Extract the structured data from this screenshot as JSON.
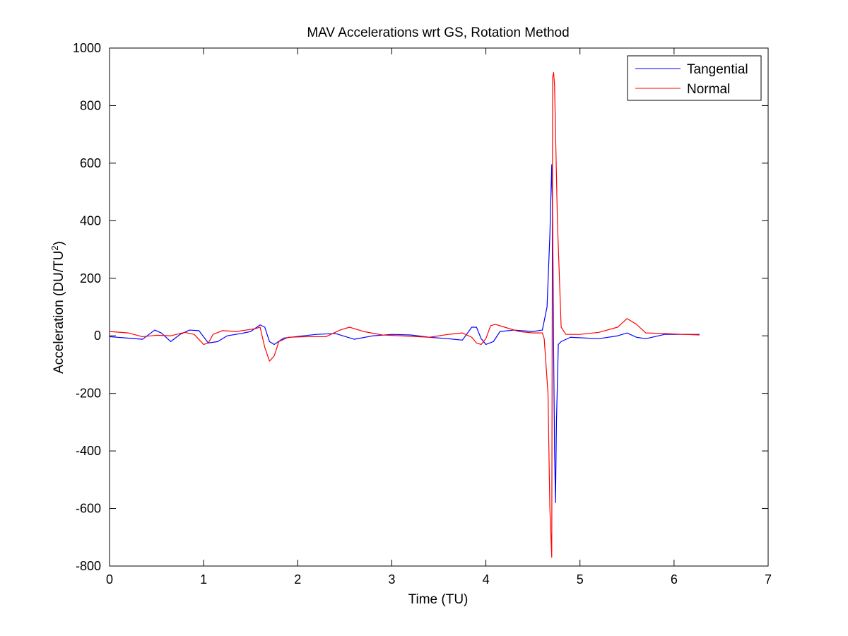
{
  "chart_data": {
    "type": "line",
    "title": "MAV Accelerations wrt GS, Rotation Method",
    "xlabel": "Time (TU)",
    "ylabel": {
      "base": "Acceleration (DU/TU",
      "sup": "2",
      "tail": ")"
    },
    "xlim": [
      0,
      7
    ],
    "ylim": [
      -800,
      1000
    ],
    "xticks": [
      0,
      1,
      2,
      3,
      4,
      5,
      6,
      7
    ],
    "xtick_labels": [
      "0",
      "1",
      "2",
      "3",
      "4",
      "5",
      "6",
      "7"
    ],
    "yticks": [
      -800,
      -600,
      -400,
      -200,
      0,
      200,
      400,
      600,
      800,
      1000
    ],
    "ytick_labels": [
      "-800",
      "-600",
      "-400",
      "-200",
      "0",
      "200",
      "400",
      "600",
      "800",
      "1000"
    ],
    "grid": false,
    "legend_position": "top-right",
    "series": [
      {
        "name": "Tangential",
        "color": "#0000ff",
        "points": [
          [
            0,
            -3
          ],
          [
            0.2,
            -8
          ],
          [
            0.35,
            -12
          ],
          [
            0.42,
            5
          ],
          [
            0.48,
            20
          ],
          [
            0.55,
            10
          ],
          [
            0.65,
            -20
          ],
          [
            0.75,
            5
          ],
          [
            0.85,
            20
          ],
          [
            0.95,
            18
          ],
          [
            1.05,
            -25
          ],
          [
            1.15,
            -20
          ],
          [
            1.25,
            0
          ],
          [
            1.4,
            8
          ],
          [
            1.5,
            15
          ],
          [
            1.6,
            38
          ],
          [
            1.65,
            30
          ],
          [
            1.7,
            -20
          ],
          [
            1.75,
            -30
          ],
          [
            1.85,
            -8
          ],
          [
            2.0,
            -2
          ],
          [
            2.2,
            5
          ],
          [
            2.4,
            8
          ],
          [
            2.6,
            -12
          ],
          [
            2.8,
            0
          ],
          [
            3.0,
            5
          ],
          [
            3.2,
            3
          ],
          [
            3.4,
            -5
          ],
          [
            3.6,
            -10
          ],
          [
            3.75,
            -15
          ],
          [
            3.85,
            30
          ],
          [
            3.9,
            30
          ],
          [
            3.95,
            -10
          ],
          [
            4.0,
            -30
          ],
          [
            4.08,
            -20
          ],
          [
            4.15,
            15
          ],
          [
            4.3,
            20
          ],
          [
            4.5,
            15
          ],
          [
            4.6,
            20
          ],
          [
            4.65,
            100
          ],
          [
            4.68,
            350
          ],
          [
            4.7,
            595
          ],
          [
            4.71,
            390
          ],
          [
            4.72,
            -50
          ],
          [
            4.73,
            -400
          ],
          [
            4.74,
            -580
          ],
          [
            4.75,
            -300
          ],
          [
            4.77,
            -30
          ],
          [
            4.8,
            -20
          ],
          [
            4.9,
            -5
          ],
          [
            5.2,
            -10
          ],
          [
            5.4,
            0
          ],
          [
            5.5,
            10
          ],
          [
            5.6,
            -5
          ],
          [
            5.7,
            -10
          ],
          [
            5.9,
            5
          ],
          [
            6.1,
            5
          ],
          [
            6.27,
            5
          ]
        ]
      },
      {
        "name": "Normal",
        "color": "#ff0000",
        "points": [
          [
            0,
            15
          ],
          [
            0.2,
            10
          ],
          [
            0.35,
            -3
          ],
          [
            0.5,
            2
          ],
          [
            0.65,
            0
          ],
          [
            0.8,
            12
          ],
          [
            0.9,
            5
          ],
          [
            1.0,
            -30
          ],
          [
            1.05,
            -25
          ],
          [
            1.1,
            5
          ],
          [
            1.2,
            18
          ],
          [
            1.35,
            15
          ],
          [
            1.55,
            25
          ],
          [
            1.6,
            30
          ],
          [
            1.65,
            -40
          ],
          [
            1.7,
            -88
          ],
          [
            1.75,
            -70
          ],
          [
            1.8,
            -20
          ],
          [
            1.9,
            -5
          ],
          [
            2.1,
            -3
          ],
          [
            2.3,
            -3
          ],
          [
            2.45,
            20
          ],
          [
            2.55,
            30
          ],
          [
            2.7,
            15
          ],
          [
            2.9,
            3
          ],
          [
            3.1,
            0
          ],
          [
            3.4,
            -5
          ],
          [
            3.6,
            5
          ],
          [
            3.75,
            10
          ],
          [
            3.85,
            -5
          ],
          [
            3.9,
            -25
          ],
          [
            3.95,
            -30
          ],
          [
            4.0,
            -10
          ],
          [
            4.05,
            35
          ],
          [
            4.1,
            40
          ],
          [
            4.2,
            30
          ],
          [
            4.35,
            15
          ],
          [
            4.5,
            10
          ],
          [
            4.6,
            10
          ],
          [
            4.62,
            -10
          ],
          [
            4.66,
            -200
          ],
          [
            4.68,
            -600
          ],
          [
            4.7,
            -770
          ],
          [
            4.71,
            900
          ],
          [
            4.72,
            915
          ],
          [
            4.73,
            870
          ],
          [
            4.76,
            400
          ],
          [
            4.8,
            30
          ],
          [
            4.85,
            5
          ],
          [
            5.0,
            5
          ],
          [
            5.2,
            12
          ],
          [
            5.4,
            30
          ],
          [
            5.5,
            60
          ],
          [
            5.6,
            40
          ],
          [
            5.7,
            10
          ],
          [
            5.9,
            8
          ],
          [
            6.1,
            5
          ],
          [
            6.27,
            3
          ]
        ]
      }
    ]
  }
}
